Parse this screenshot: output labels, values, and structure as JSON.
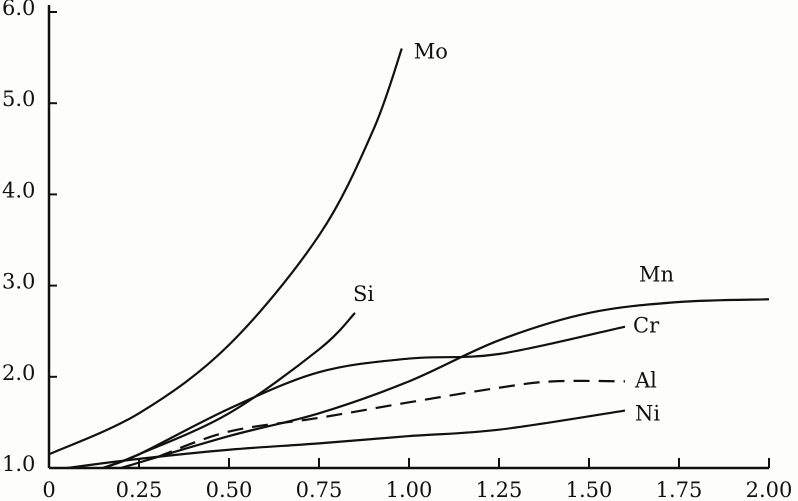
{
  "chart_data": {
    "type": "line",
    "title": "",
    "xlabel": "",
    "ylabel": "",
    "xlim": [
      0,
      2.0
    ],
    "ylim": [
      1.0,
      6.0
    ],
    "grid": false,
    "x_ticks": [
      "0",
      "0.25",
      "0.50",
      "0.75",
      "1.00",
      "1.25",
      "1.50",
      "1.75",
      "2.00"
    ],
    "x_tick_values": [
      0,
      0.25,
      0.5,
      0.75,
      1.0,
      1.25,
      1.5,
      1.75,
      2.0
    ],
    "y_ticks": [
      "1.0",
      "2.0",
      "3.0",
      "4.0",
      "5.0",
      "6.0"
    ],
    "y_tick_values": [
      1,
      2,
      3,
      4,
      5,
      6
    ],
    "series": [
      {
        "name": "Mo",
        "style": "solid",
        "points": [
          [
            0,
            1.15
          ],
          [
            0.25,
            1.6
          ],
          [
            0.5,
            2.35
          ],
          [
            0.75,
            3.55
          ],
          [
            0.9,
            4.7
          ],
          [
            0.98,
            5.6
          ]
        ]
      },
      {
        "name": "Si",
        "style": "solid",
        "points": [
          [
            0.15,
            1.0
          ],
          [
            0.25,
            1.15
          ],
          [
            0.5,
            1.6
          ],
          [
            0.75,
            2.3
          ],
          [
            0.85,
            2.7
          ]
        ]
      },
      {
        "name": "Mn",
        "style": "solid",
        "points": [
          [
            0.2,
            1.0
          ],
          [
            0.5,
            1.35
          ],
          [
            0.75,
            1.6
          ],
          [
            1.0,
            1.95
          ],
          [
            1.25,
            2.4
          ],
          [
            1.5,
            2.7
          ],
          [
            1.75,
            2.82
          ],
          [
            2.0,
            2.85
          ]
        ]
      },
      {
        "name": "Cr",
        "style": "solid",
        "points": [
          [
            0.15,
            1.0
          ],
          [
            0.25,
            1.15
          ],
          [
            0.5,
            1.65
          ],
          [
            0.75,
            2.05
          ],
          [
            1.0,
            2.2
          ],
          [
            1.25,
            2.25
          ],
          [
            1.6,
            2.55
          ]
        ]
      },
      {
        "name": "Al",
        "style": "dashed",
        "points": [
          [
            0.3,
            1.12
          ],
          [
            0.5,
            1.4
          ],
          [
            0.75,
            1.55
          ],
          [
            1.0,
            1.72
          ],
          [
            1.25,
            1.88
          ],
          [
            1.4,
            1.95
          ],
          [
            1.6,
            1.95
          ]
        ]
      },
      {
        "name": "Ni",
        "style": "solid",
        "points": [
          [
            0.05,
            1.0
          ],
          [
            0.25,
            1.1
          ],
          [
            0.5,
            1.2
          ],
          [
            0.75,
            1.27
          ],
          [
            1.0,
            1.35
          ],
          [
            1.25,
            1.42
          ],
          [
            1.6,
            1.63
          ]
        ]
      }
    ]
  }
}
